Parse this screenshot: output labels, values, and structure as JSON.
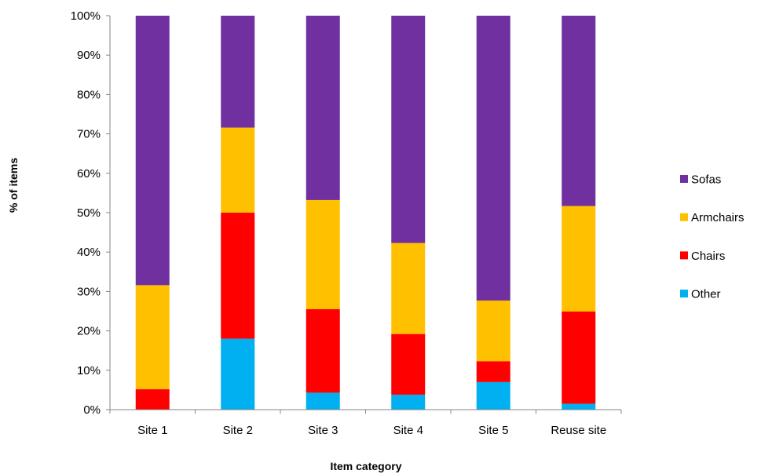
{
  "chart_data": {
    "type": "bar",
    "stacked": true,
    "percent": true,
    "title": "",
    "xlabel": "Item category",
    "ylabel": "% of items",
    "ylim": [
      0,
      100
    ],
    "yticks": [
      "0%",
      "10%",
      "20%",
      "30%",
      "40%",
      "50%",
      "60%",
      "70%",
      "80%",
      "90%",
      "100%"
    ],
    "categories": [
      "Site 1",
      "Site 2",
      "Site 3",
      "Site 4",
      "Site 5",
      "Reuse site"
    ],
    "series": [
      {
        "name": "Other",
        "color": "#00b0f0",
        "values": [
          0,
          18,
          4.3,
          3.8,
          7,
          1.5
        ]
      },
      {
        "name": "Chairs",
        "color": "#ff0000",
        "values": [
          5.2,
          32,
          21.2,
          15.4,
          5.3,
          23.4
        ]
      },
      {
        "name": "Armchairs",
        "color": "#ffc000",
        "values": [
          26.4,
          21.6,
          27.7,
          23.1,
          15.4,
          26.8
        ]
      },
      {
        "name": "Sofas",
        "color": "#7030a0",
        "values": [
          68.4,
          28.4,
          46.8,
          57.7,
          72.3,
          48.3
        ]
      }
    ],
    "legend": {
      "position": "right",
      "order": [
        "Sofas",
        "Armchairs",
        "Chairs",
        "Other"
      ]
    },
    "grid": false
  }
}
